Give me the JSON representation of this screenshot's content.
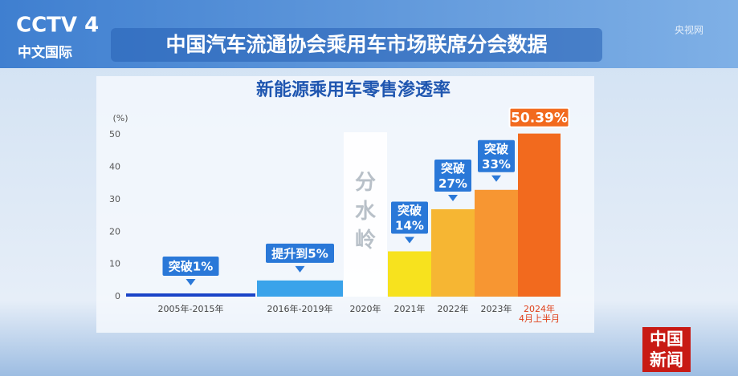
{
  "header": {
    "channel": "CCTV 4",
    "channel_sub": "中文国际",
    "source": "中国汽车流通协会乘用车市场联席分会数据",
    "watermark": "央视网",
    "corner": "中国新闻"
  },
  "chart_data": {
    "type": "bar",
    "title": "新能源乘用车零售渗透率",
    "y_unit": "(%)",
    "categories": [
      "2005年-2015年",
      "2016年-2019年",
      "2020年",
      "2021年",
      "2022年",
      "2023年",
      "2024年\n4月上半月"
    ],
    "values": [
      1,
      5,
      null,
      14,
      27,
      33,
      50.39
    ],
    "value_labels": [
      "突破1%",
      "提升到5%",
      null,
      "突破\n14%",
      "突破\n27%",
      "突破\n33%",
      "50.39%"
    ],
    "colors": [
      "#1a44c8",
      "#3aa3ea",
      null,
      "#f7e21e",
      "#f6b633",
      "#f79632",
      "#f26a1e"
    ],
    "annotation": "分水岭",
    "ylim": [
      0,
      55
    ],
    "yticks": [
      0,
      10,
      20,
      30,
      40,
      50
    ]
  }
}
